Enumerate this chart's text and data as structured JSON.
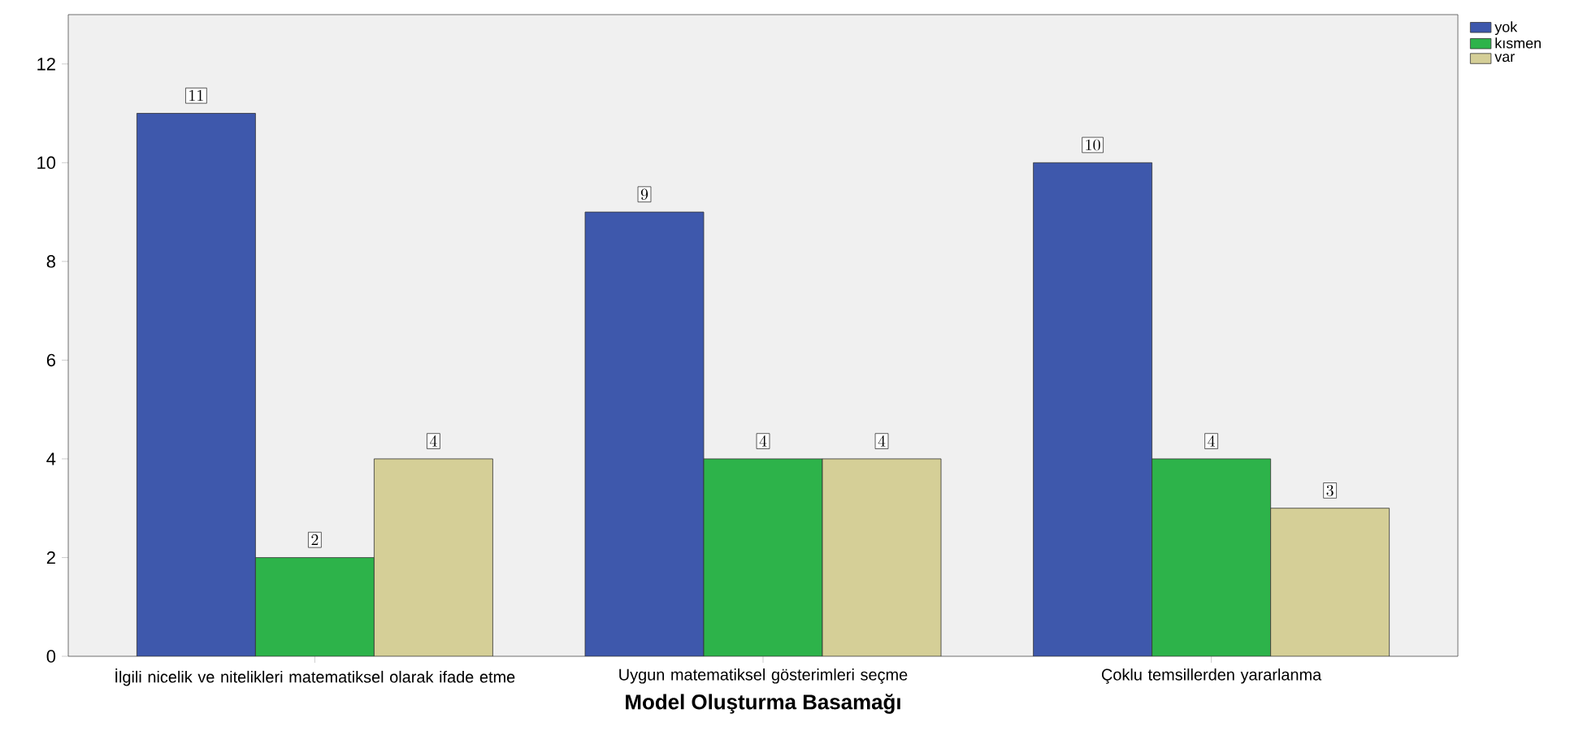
{
  "chart_data": {
    "type": "bar",
    "xlabel": "Model Oluşturma Basamağı",
    "categories": [
      "İlgili nicelik ve nitelikleri matematiksel olarak ifade etme",
      "Uygun matematiksel gösterimleri seçme",
      "Çoklu temsillerden yararlanma"
    ],
    "series": [
      {
        "name": "yok",
        "color": "#3e58ac",
        "values": [
          11,
          9,
          10
        ]
      },
      {
        "name": "kısmen",
        "color": "#2db34a",
        "values": [
          2,
          4,
          4
        ]
      },
      {
        "name": "var",
        "color": "#d5cf97",
        "values": [
          4,
          4,
          3
        ]
      }
    ],
    "ylim": [
      0,
      13
    ],
    "yticks": [
      0,
      2,
      4,
      6,
      8,
      10,
      12
    ],
    "data_labels": true,
    "legend": "top right",
    "grid": false
  }
}
